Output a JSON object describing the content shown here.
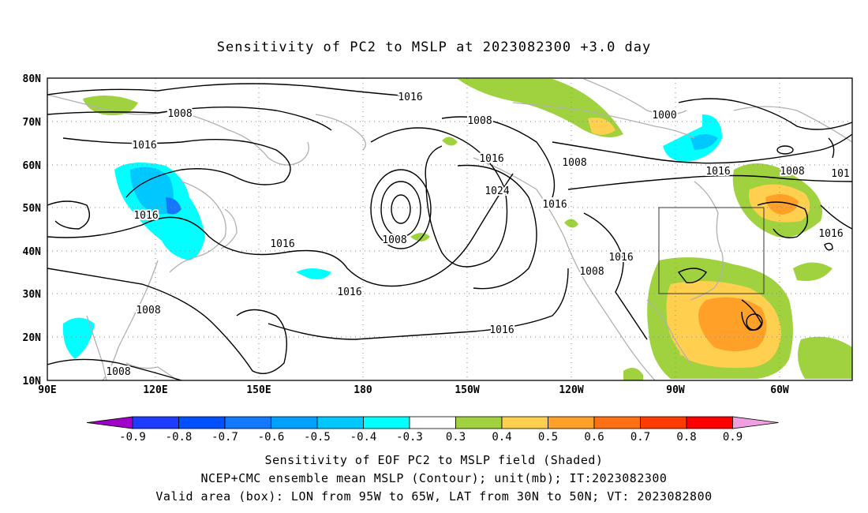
{
  "title": "Sensitivity of PC2 to MSLP at 2023082300 +3.0 day",
  "map": {
    "lat_ticks": [
      "80N",
      "70N",
      "60N",
      "50N",
      "40N",
      "30N",
      "20N",
      "10N"
    ],
    "lon_ticks": [
      "90E",
      "120E",
      "150E",
      "180",
      "150W",
      "120W",
      "90W",
      "60W"
    ],
    "valid_box": {
      "lon_from": -95,
      "lon_to": -65,
      "lat_from": 30,
      "lat_to": 50
    },
    "contour_labels": [
      "1016",
      "1008",
      "1016",
      "1016",
      "1008",
      "1016",
      "1008",
      "1016",
      "1024",
      "1016",
      "1008",
      "1000",
      "1016",
      "1008",
      "101",
      "1016",
      "1016",
      "1008",
      "1016",
      "1016",
      "1008",
      "1008"
    ],
    "colors": {
      "land": "#b0b0b0",
      "contour": "#000000",
      "grid": "#888888"
    }
  },
  "colorbar": {
    "labels": [
      "-0.9",
      "-0.8",
      "-0.7",
      "-0.6",
      "-0.5",
      "-0.4",
      "-0.3",
      "0.3",
      "0.4",
      "0.5",
      "0.6",
      "0.7",
      "0.8",
      "0.9"
    ],
    "colors": [
      "#a000c8",
      "#1e3cff",
      "#0050ff",
      "#1478ff",
      "#00a0ff",
      "#00c8ff",
      "#00ffff",
      "#ffffff",
      "#a0d240",
      "#ffd050",
      "#ffa028",
      "#ff7014",
      "#ff3c00",
      "#ff0000",
      "#f0a0e0"
    ]
  },
  "footer": {
    "line1": "Sensitivity of EOF PC2 to MSLP field (Shaded)",
    "line2": "NCEP+CMC ensemble mean MSLP (Contour); unit(mb); IT:2023082300",
    "line3": "Valid area (box): LON from 95W to 65W, LAT from 30N to 50N; VT: 2023082800"
  }
}
